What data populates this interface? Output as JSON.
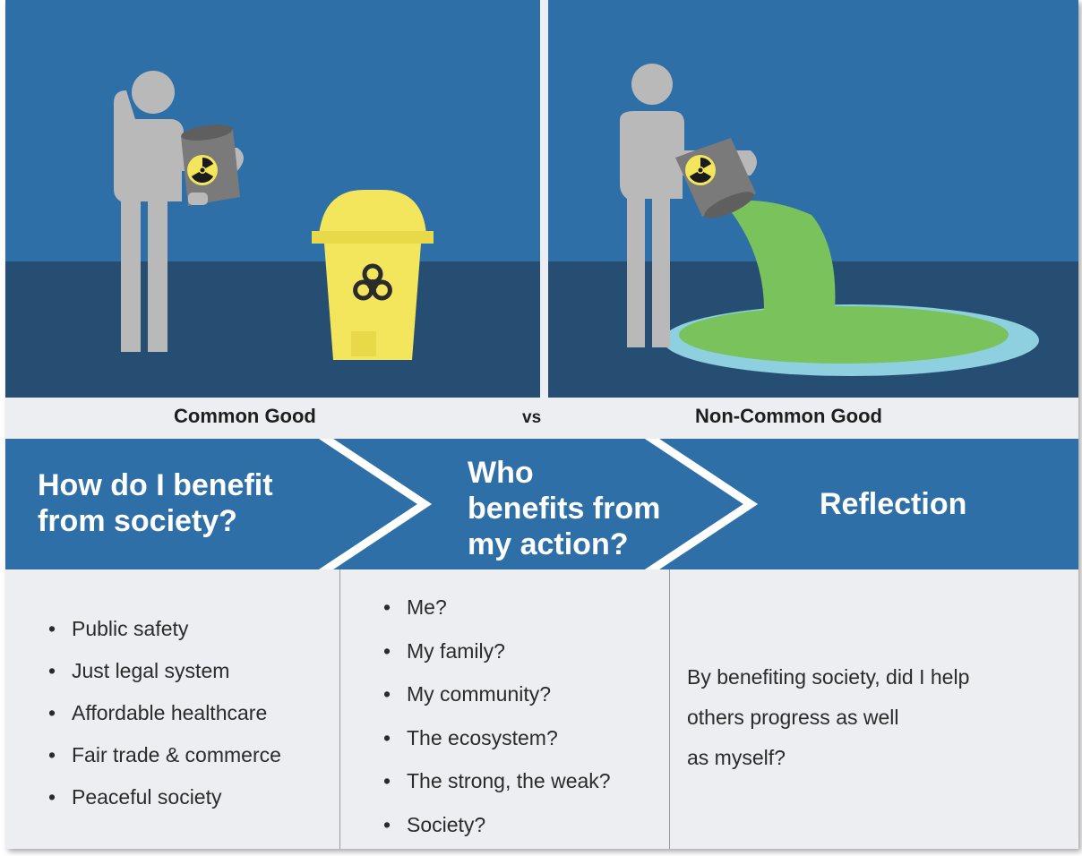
{
  "scenes": {
    "left": {
      "labels": {
        "caption": "Common Good"
      }
    },
    "right": {
      "labels": {
        "caption": "Non-Common Good"
      }
    },
    "separator": "vs"
  },
  "colors": {
    "sky": "#2f6fa8",
    "floor": "#264e72",
    "figure": "#b9b9b9",
    "canister": "#7a7a7a",
    "hazard_yellow": "#f4e65c",
    "spill_green": "#79c25c",
    "spill_blue": "#8fd0e0",
    "band": "#2f6fa8"
  },
  "steps": [
    {
      "title_line1": "How do I benefit",
      "title_line2": "from society?"
    },
    {
      "title_line1": "Who",
      "title_line2": "benefits from",
      "title_line3": "my action?"
    },
    {
      "title_line1": "Reflection"
    }
  ],
  "columns": {
    "benefits": [
      "Public safety",
      "Just legal system",
      "Affordable healthcare",
      "Fair trade & commerce",
      "Peaceful society"
    ],
    "beneficiaries": [
      "Me?",
      "My family?",
      "My community?",
      "The ecosystem?",
      "The strong, the weak?",
      "Society?"
    ],
    "reflection": {
      "line1": "By benefiting society, did I help",
      "line2": "others progress as well",
      "line3": "as myself?"
    }
  },
  "icons": [
    "person-icon",
    "radiation-icon",
    "biohazard-icon",
    "waste-bin-icon",
    "spill-icon"
  ]
}
